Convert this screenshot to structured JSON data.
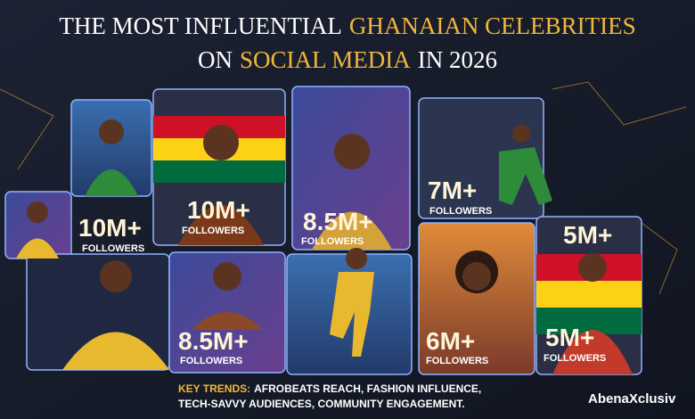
{
  "header": {
    "title_line1": {
      "part1": "THE MOST INFLUENTIAL",
      "highlight": "GHANAIAN CELEBRITIES"
    },
    "title_line2": {
      "part1": "ON",
      "highlight": "SOCIAL MEDIA",
      "part2": "IN 2026"
    }
  },
  "cards": [
    {
      "count": "10M+",
      "label": "FOLLOWERS"
    },
    {
      "count": "10M+",
      "label": "FOLLOWERS"
    },
    {
      "count": "8.5M+",
      "label": "FOLLOWERS"
    },
    {
      "count": "7M+",
      "label": "FOLLOWERS"
    },
    {
      "count": "8.5M+",
      "label": "FOLLOWERS"
    },
    {
      "count": "6M+",
      "label": "FOLLOWERS"
    },
    {
      "count": "5M+",
      "label": "FOLLOWERS"
    }
  ],
  "top_right_count": "5M+",
  "footer": {
    "key_trends_label": "KEY TRENDS:",
    "key_trends_line1": "AFROBEATS REACH, FASHION INFLUENCE,",
    "key_trends_line2": "TECH-SAVVY AUDIENCES, COMMUNITY ENGAGEMENT."
  },
  "brand": "AbenaXclusiv"
}
